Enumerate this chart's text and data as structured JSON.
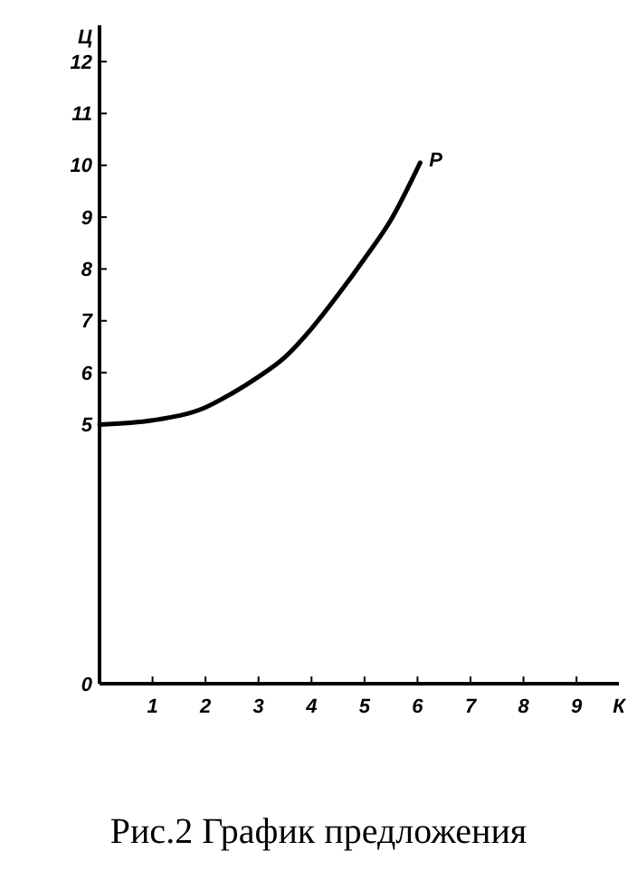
{
  "chart_data": {
    "type": "line",
    "xlabel": "К",
    "ylabel": "Ц",
    "annotations": [
      "Рис.2 График предложения"
    ],
    "x": [
      0,
      1,
      2,
      2.5,
      3,
      3.5,
      4,
      4.5,
      5,
      5.5,
      6.05
    ],
    "series": [
      {
        "name": "P",
        "color": "#000000",
        "values": [
          5,
          5.08,
          5.33,
          5.6,
          5.92,
          6.3,
          6.85,
          7.5,
          8.2,
          8.95,
          10.05
        ]
      }
    ],
    "xlim": [
      0,
      9.8
    ],
    "xticks": [
      1,
      2,
      3,
      4,
      5,
      6,
      7,
      8,
      9
    ],
    "ylim": [
      0,
      12.7
    ],
    "yticks": [
      0,
      5,
      6,
      7,
      8,
      9,
      10,
      11,
      12
    ],
    "grid": false,
    "marker": "none",
    "line_style": "solid"
  }
}
